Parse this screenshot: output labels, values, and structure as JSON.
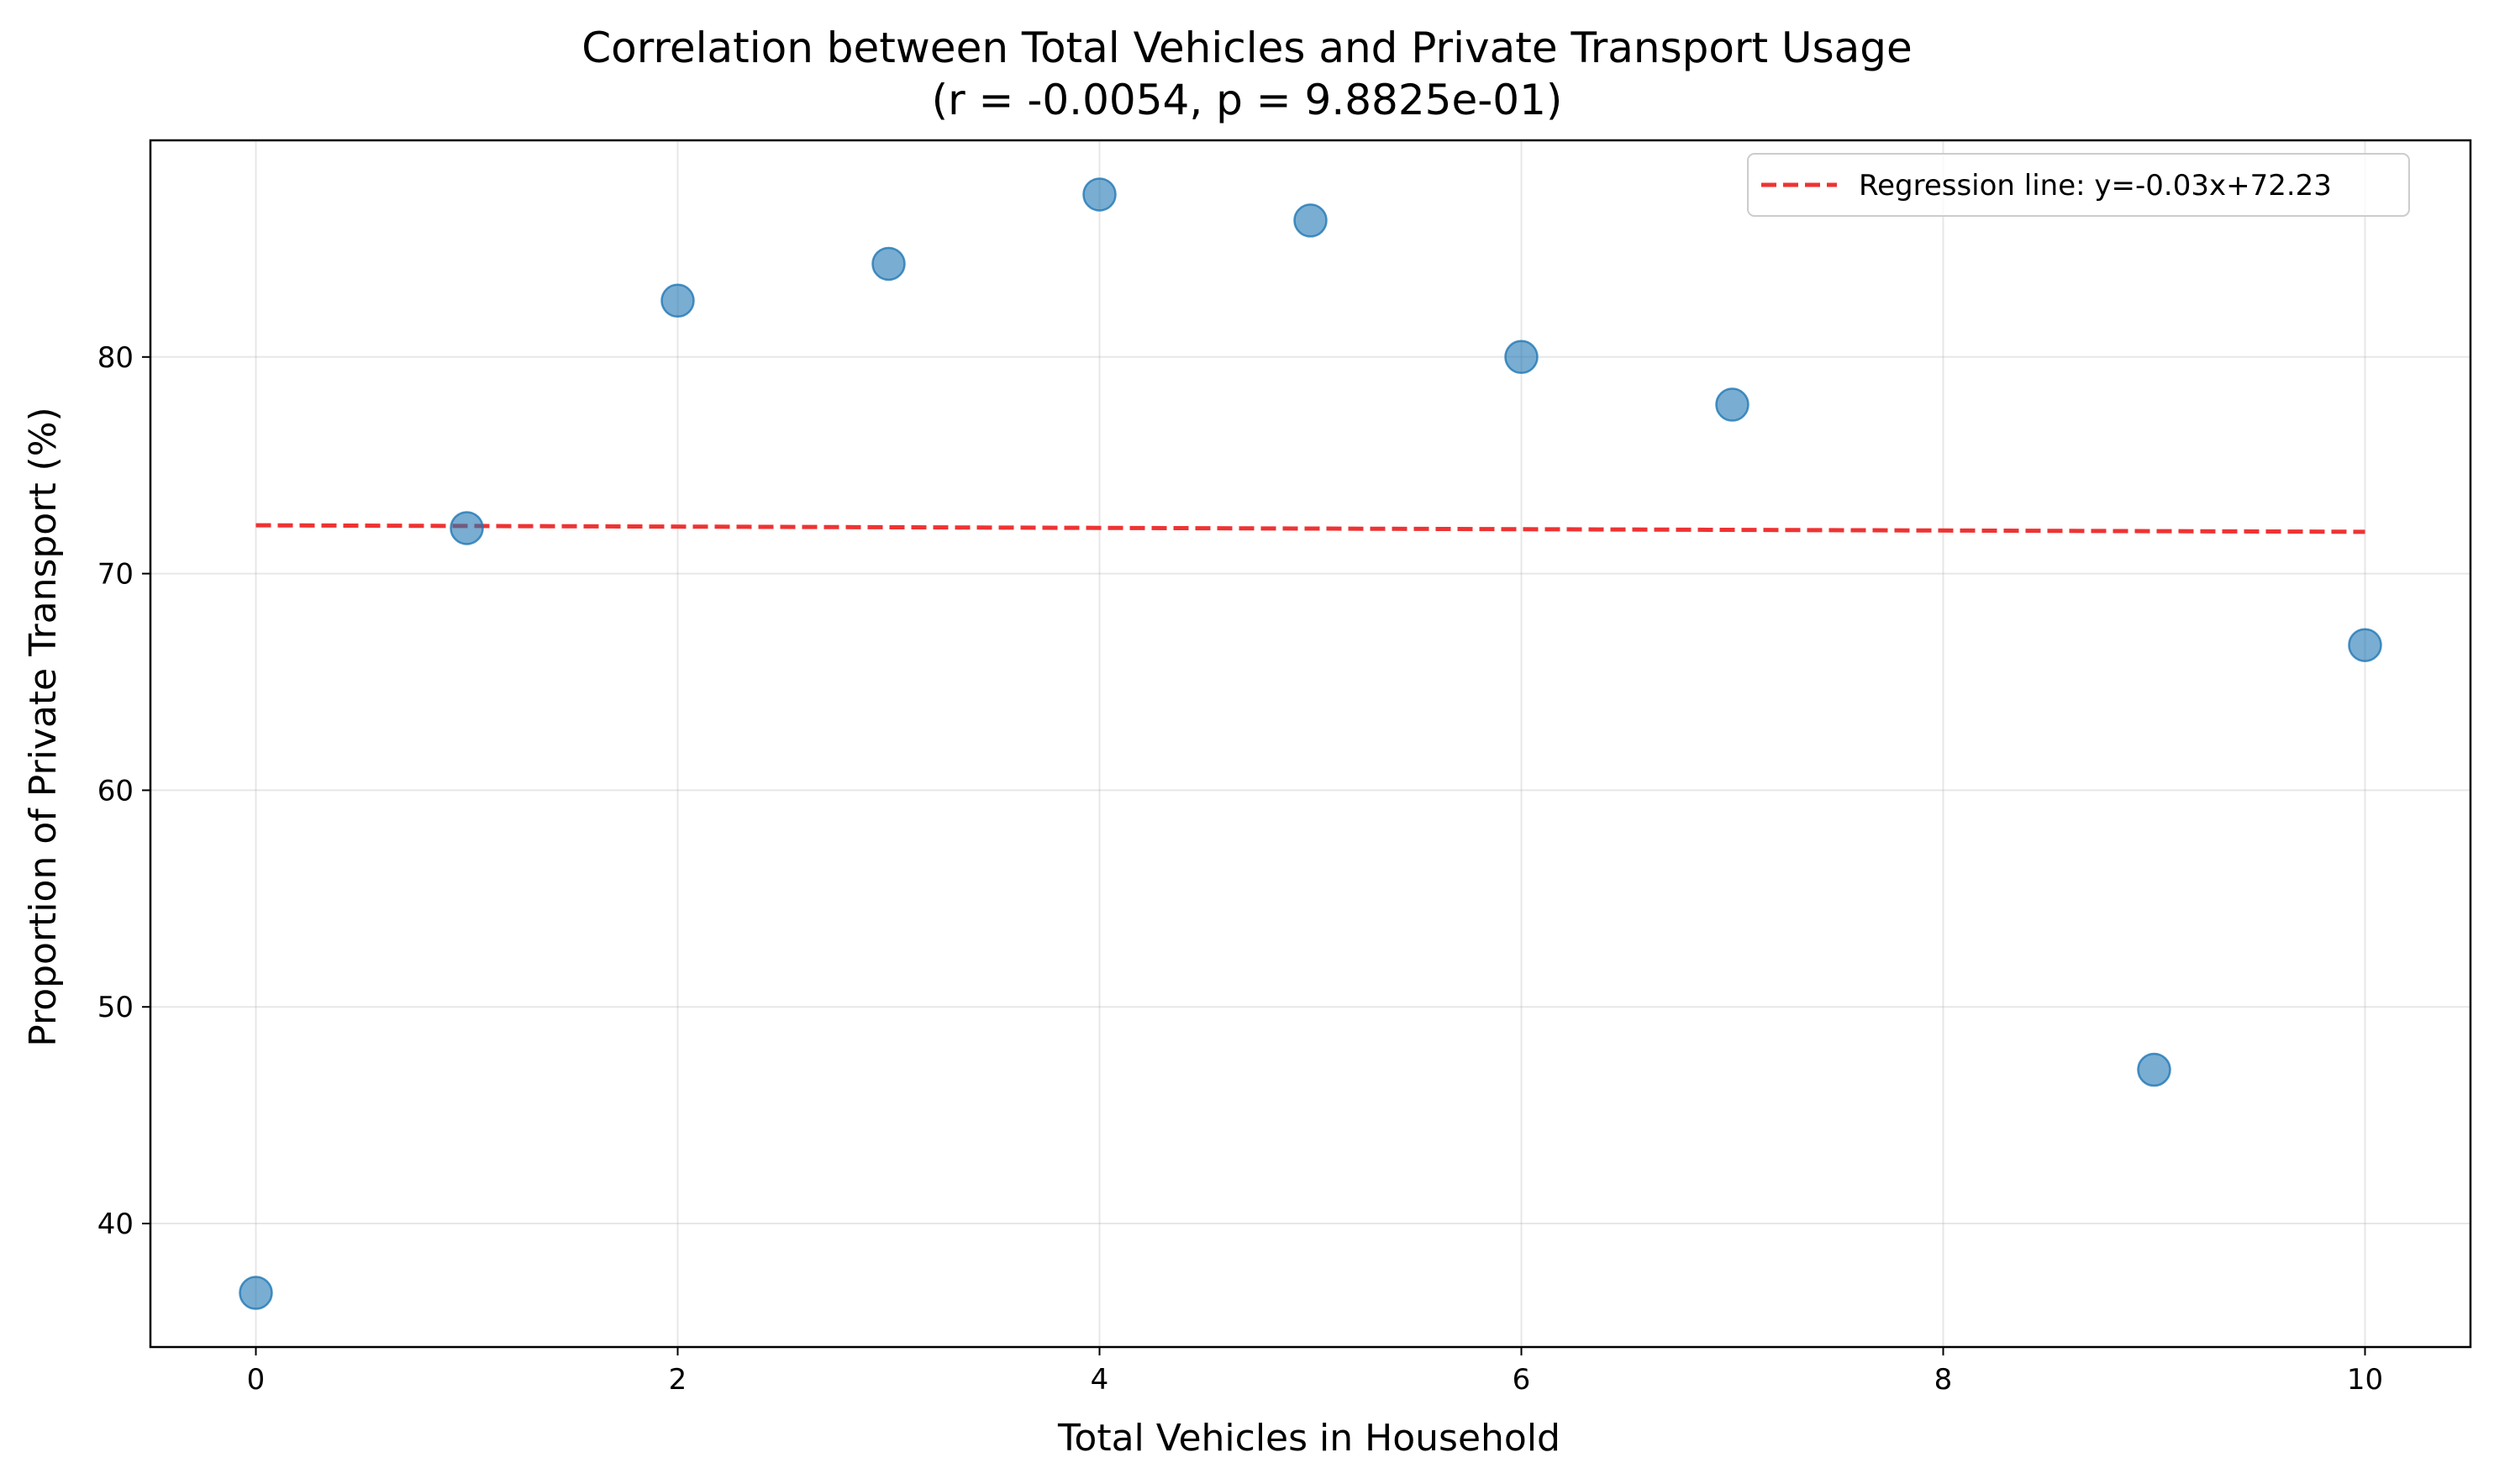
{
  "chart_data": {
    "type": "scatter",
    "title": "Correlation between Total Vehicles and Private Transport Usage",
    "subtitle": "(r = -0.0054, p = 9.8825e-01)",
    "xlabel": "Total Vehicles in Household",
    "ylabel": "Proportion of Private Transport (%)",
    "xlim": [
      -0.5,
      10.5
    ],
    "ylim": [
      34.3,
      90.0
    ],
    "xticks": [
      0,
      2,
      4,
      6,
      8,
      10
    ],
    "yticks": [
      40,
      50,
      60,
      70,
      80
    ],
    "grid": true,
    "legend_position": "top-right",
    "series": [
      {
        "type": "scatter",
        "color": "#1f77b4",
        "x": [
          0,
          1,
          2,
          3,
          4,
          5,
          6,
          7,
          9,
          10
        ],
        "y": [
          36.8,
          72.1,
          82.6,
          84.3,
          87.5,
          86.3,
          80.0,
          77.8,
          47.1,
          66.7
        ]
      },
      {
        "type": "line",
        "name": "Regression line: y=-0.03x+72.23",
        "color": "#ee3333",
        "dash": true,
        "slope": -0.03,
        "intercept": 72.23,
        "x": [
          0,
          10
        ]
      }
    ]
  }
}
